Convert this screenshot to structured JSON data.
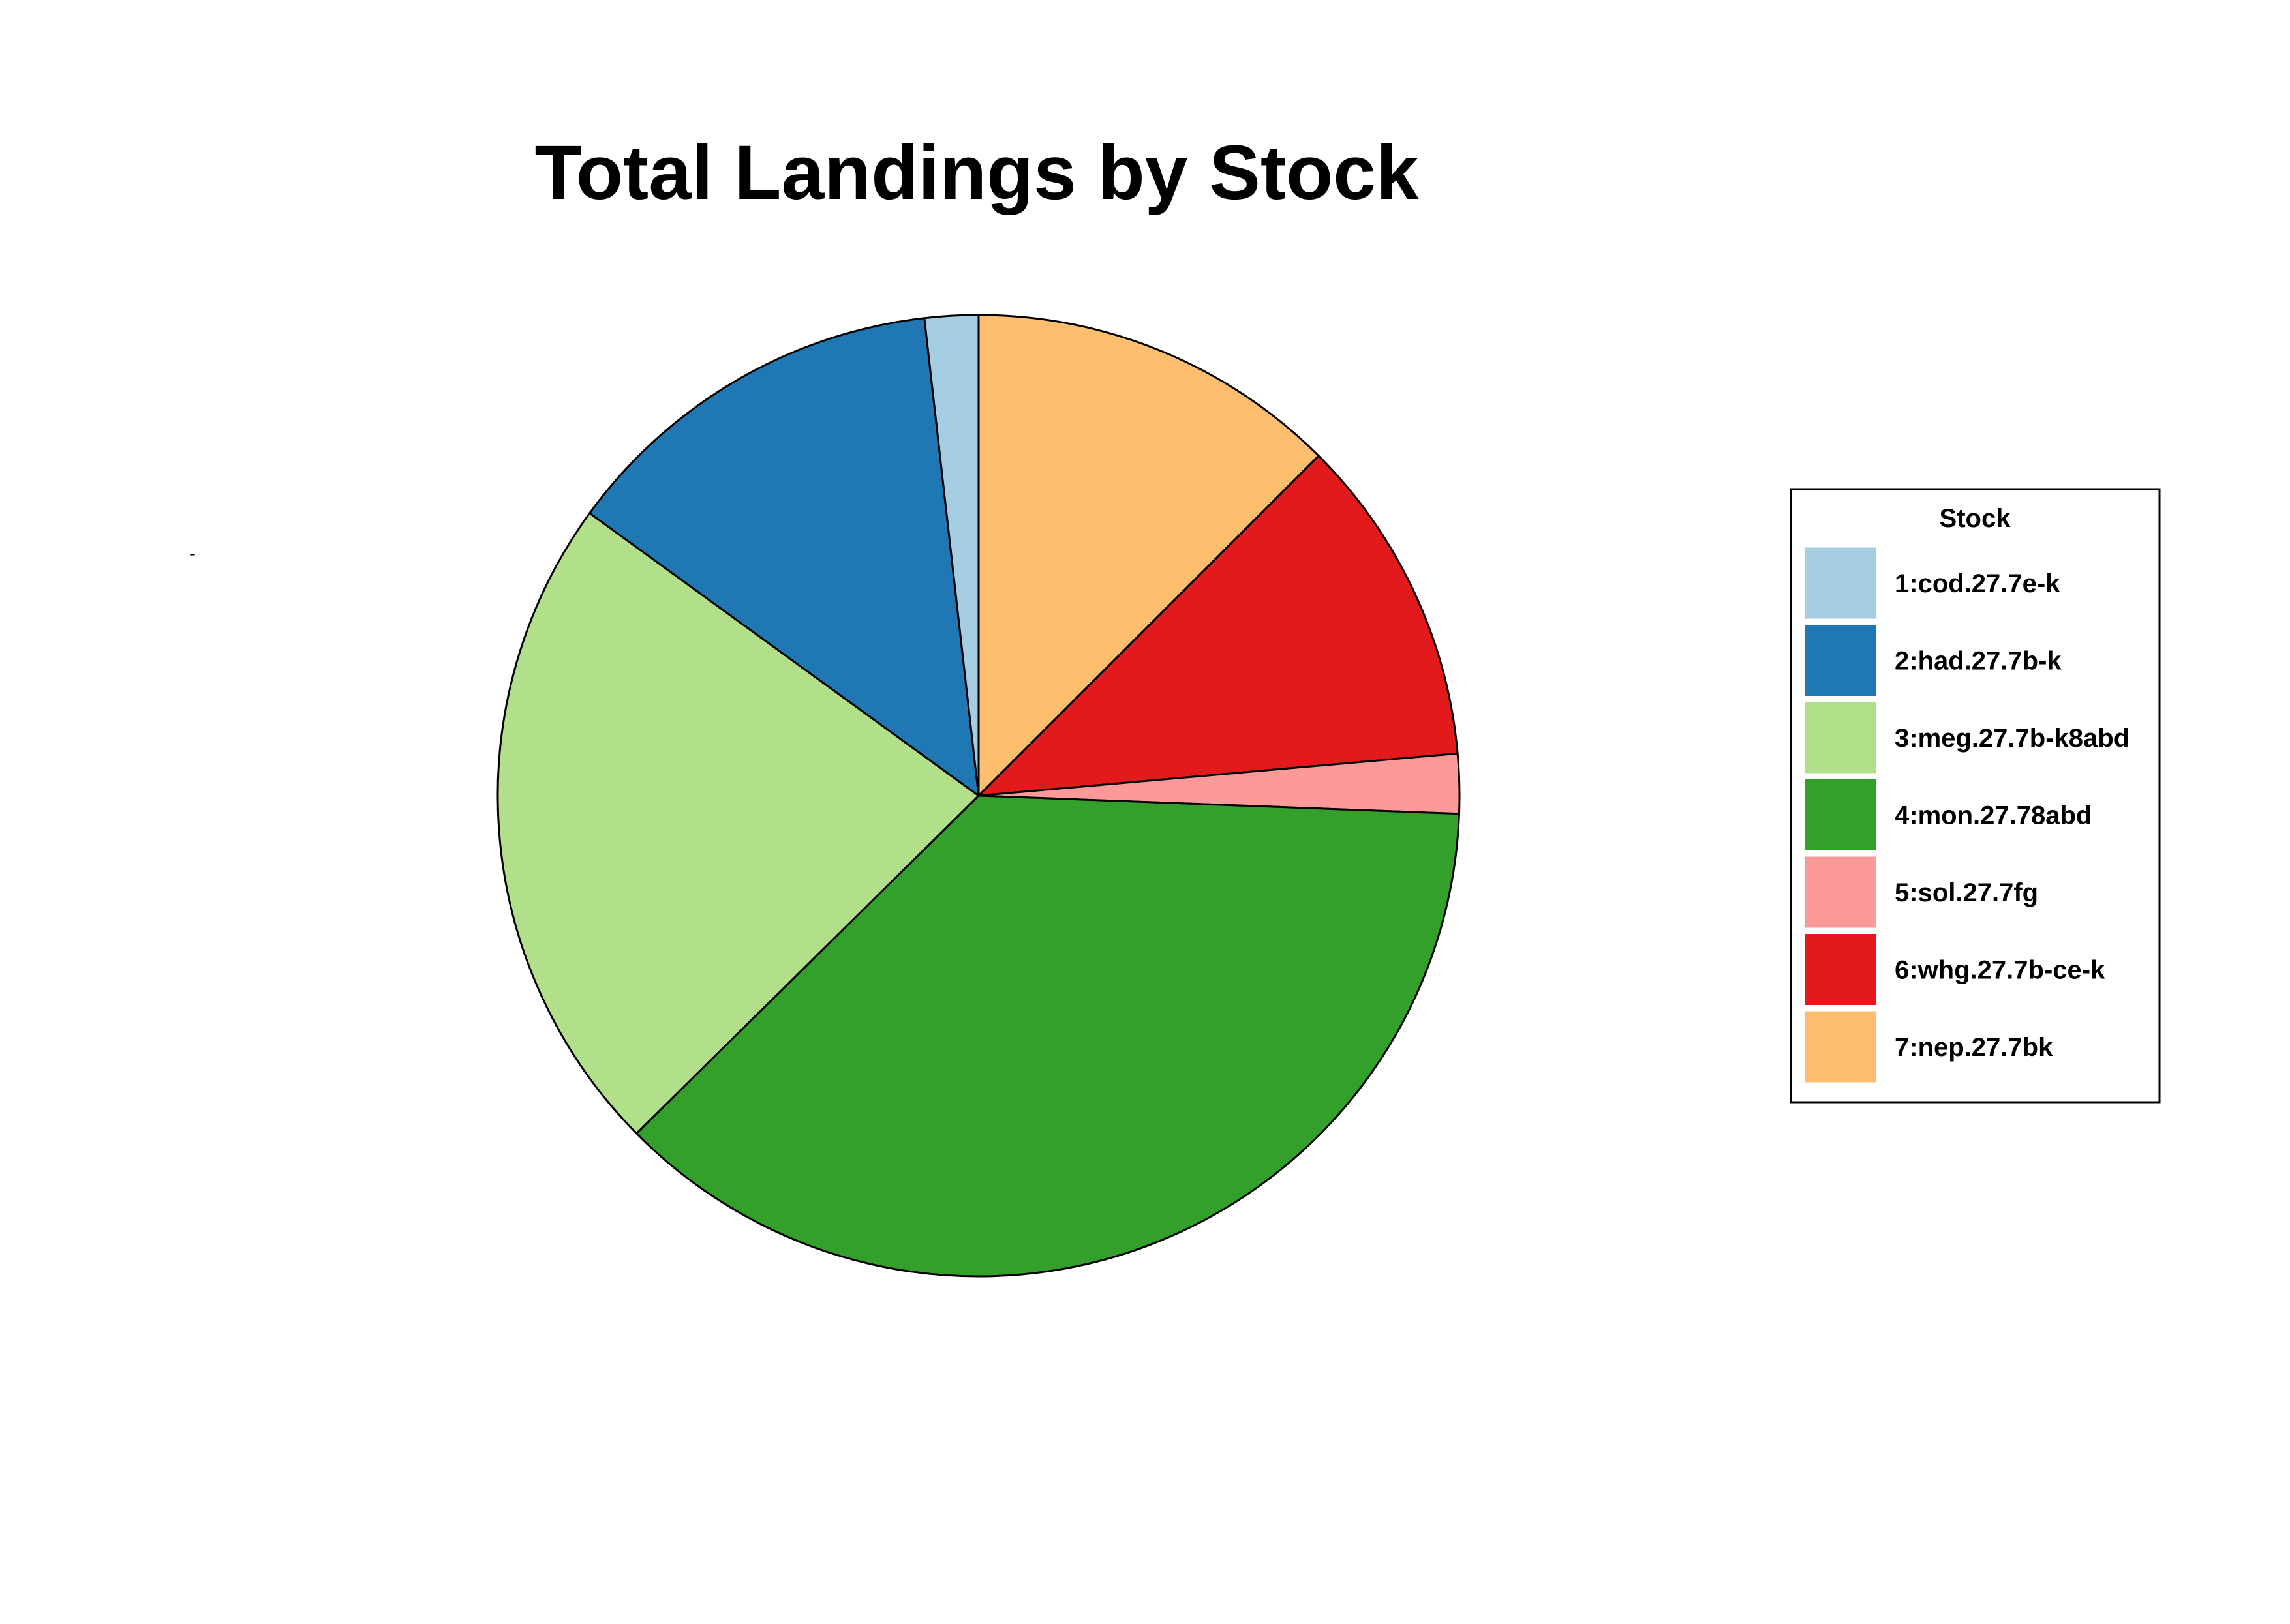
{
  "chart_data": {
    "type": "pie",
    "title": "Total Landings by Stock",
    "start_angle_deg": 90,
    "direction": "clockwise",
    "legend": {
      "title": "Stock",
      "position": "right"
    },
    "stray_mark": "-",
    "slices": [
      {
        "order": 7,
        "label": "7:nep.27.7bk",
        "value": 12.5,
        "color": "#FDBF6F"
      },
      {
        "order": 6,
        "label": "6:whg.27.7b-ce-k",
        "value": 11.1,
        "color": "#E31A1C"
      },
      {
        "order": 5,
        "label": "5:sol.27.7fg",
        "value": 2.0,
        "color": "#FB9A99"
      },
      {
        "order": 4,
        "label": "4:mon.27.78abd",
        "value": 37.0,
        "color": "#33A02C"
      },
      {
        "order": 3,
        "label": "3:meg.27.7b-k8abd",
        "value": 22.4,
        "color": "#B2DF8A"
      },
      {
        "order": 2,
        "label": "2:had.27.7b-k",
        "value": 13.2,
        "color": "#1F78B4"
      },
      {
        "order": 1,
        "label": "1:cod.27.7e-k",
        "value": 1.8,
        "color": "#A6CEE3"
      }
    ],
    "legend_items": [
      {
        "label": "1:cod.27.7e-k",
        "color": "#A6CEE3"
      },
      {
        "label": "2:had.27.7b-k",
        "color": "#1F78B4"
      },
      {
        "label": "3:meg.27.7b-k8abd",
        "color": "#B2DF8A"
      },
      {
        "label": "4:mon.27.78abd",
        "color": "#33A02C"
      },
      {
        "label": "5:sol.27.7fg",
        "color": "#FB9A99"
      },
      {
        "label": "6:whg.27.7b-ce-k",
        "color": "#E31A1C"
      },
      {
        "label": "7:nep.27.7bk",
        "color": "#FDBF6F"
      }
    ]
  }
}
